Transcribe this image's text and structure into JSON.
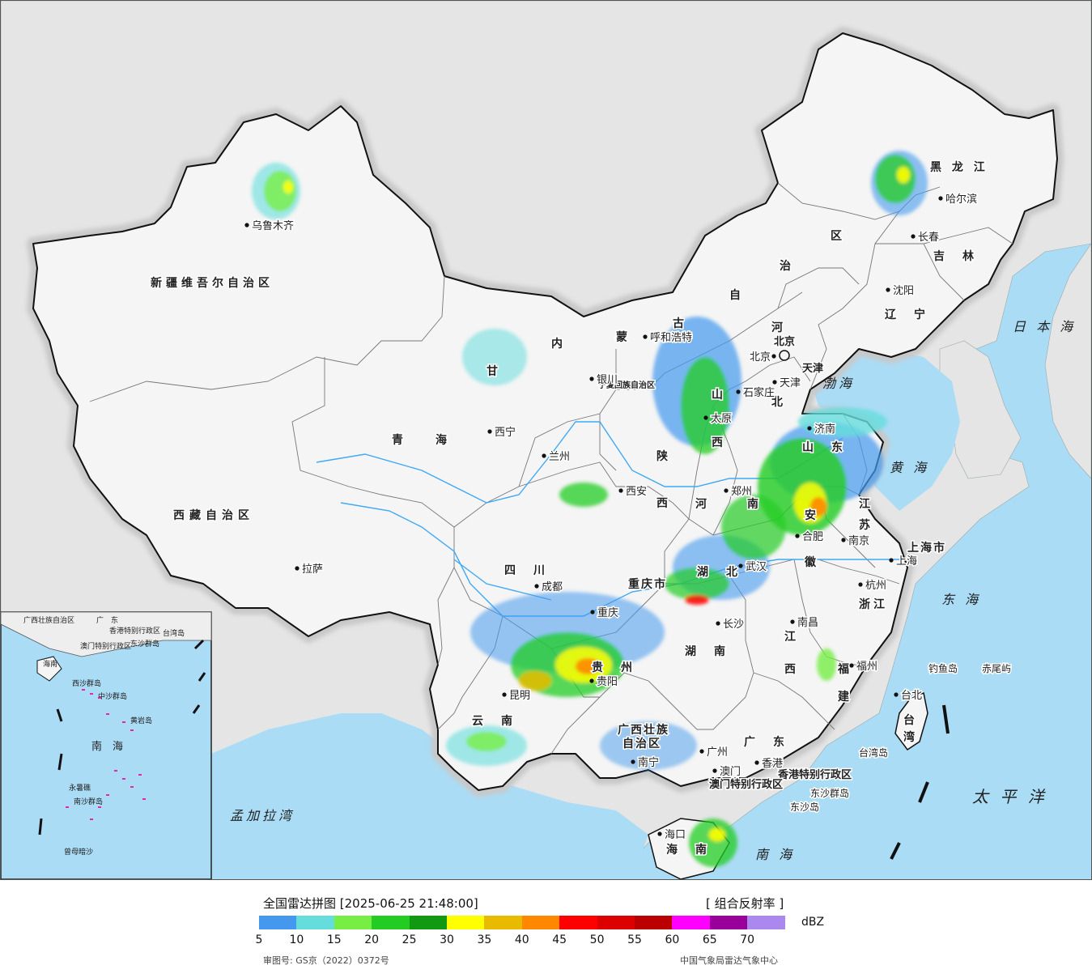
{
  "map": {
    "province_labels": [
      {
        "id": "xinjiang",
        "text": "新疆维吾尔自治区",
        "size": 14,
        "spacing": 5
      },
      {
        "id": "xizang",
        "text": "西藏自治区",
        "size": 14,
        "spacing": 6
      },
      {
        "id": "qinghai",
        "text": "青　　海",
        "size": 14,
        "spacing": 4
      },
      {
        "id": "gansu",
        "text": "甘",
        "size": 14,
        "spacing": 0
      },
      {
        "id": "sichuan",
        "text": "四　川",
        "size": 14,
        "spacing": 4
      },
      {
        "id": "yunnan",
        "text": "云　南",
        "size": 14,
        "spacing": 4
      },
      {
        "id": "guizhou",
        "text": "贵　州",
        "size": 14,
        "spacing": 4
      },
      {
        "id": "chongqing",
        "text": "重庆市",
        "size": 14,
        "spacing": 2
      },
      {
        "id": "shaanxi",
        "text": "陕",
        "size": 14,
        "spacing": 0
      },
      {
        "id": "shaanxi2",
        "text": "西",
        "size": 14,
        "spacing": 0
      },
      {
        "id": "ningxia",
        "text": "宁夏回族自治区",
        "size": 10,
        "spacing": 0
      },
      {
        "id": "neimenggu1",
        "text": "内",
        "size": 14,
        "spacing": 0
      },
      {
        "id": "neimenggu2",
        "text": "蒙",
        "size": 14,
        "spacing": 0
      },
      {
        "id": "neimenggu3",
        "text": "古",
        "size": 14,
        "spacing": 0
      },
      {
        "id": "neimenggu4",
        "text": "自",
        "size": 14,
        "spacing": 0
      },
      {
        "id": "neimenggu5",
        "text": "治",
        "size": 14,
        "spacing": 0
      },
      {
        "id": "neimenggu6",
        "text": "区",
        "size": 14,
        "spacing": 0
      },
      {
        "id": "heilongjiang",
        "text": "黑 龙 江",
        "size": 14,
        "spacing": 4
      },
      {
        "id": "jilin",
        "text": "吉　林",
        "size": 14,
        "spacing": 4
      },
      {
        "id": "liaoning",
        "text": "辽　宁",
        "size": 14,
        "spacing": 4
      },
      {
        "id": "hebei1",
        "text": "河",
        "size": 14,
        "spacing": 0
      },
      {
        "id": "hebei2",
        "text": "北",
        "size": 14,
        "spacing": 0
      },
      {
        "id": "shanxi1",
        "text": "山",
        "size": 14,
        "spacing": 0
      },
      {
        "id": "shanxi2",
        "text": "西",
        "size": 14,
        "spacing": 0
      },
      {
        "id": "shandong",
        "text": "山　东",
        "size": 14,
        "spacing": 4
      },
      {
        "id": "henan1",
        "text": "河",
        "size": 14,
        "spacing": 0
      },
      {
        "id": "henan2",
        "text": "南",
        "size": 14,
        "spacing": 0
      },
      {
        "id": "jiangsu1",
        "text": "江",
        "size": 14,
        "spacing": 0
      },
      {
        "id": "jiangsu2",
        "text": "苏",
        "size": 14,
        "spacing": 0
      },
      {
        "id": "anhui1",
        "text": "安",
        "size": 14,
        "spacing": 0
      },
      {
        "id": "anhui2",
        "text": "徽",
        "size": 14,
        "spacing": 0
      },
      {
        "id": "hubei",
        "text": "湖　北",
        "size": 14,
        "spacing": 4
      },
      {
        "id": "hunan",
        "text": "湖　南",
        "size": 14,
        "spacing": 4
      },
      {
        "id": "jiangxi1",
        "text": "江",
        "size": 14,
        "spacing": 0
      },
      {
        "id": "jiangxi2",
        "text": "西",
        "size": 14,
        "spacing": 0
      },
      {
        "id": "zhejiang",
        "text": "浙江",
        "size": 14,
        "spacing": 4
      },
      {
        "id": "fujian1",
        "text": "福",
        "size": 14,
        "spacing": 0
      },
      {
        "id": "fujian2",
        "text": "建",
        "size": 14,
        "spacing": 0
      },
      {
        "id": "guangxi1",
        "text": "广西壮族",
        "size": 14,
        "spacing": 2
      },
      {
        "id": "guangxi2",
        "text": "自治区",
        "size": 14,
        "spacing": 2
      },
      {
        "id": "guangdong",
        "text": "广　东",
        "size": 14,
        "spacing": 4
      },
      {
        "id": "hainan",
        "text": "海　南",
        "size": 14,
        "spacing": 4
      },
      {
        "id": "shanghai",
        "text": "上海市",
        "size": 14,
        "spacing": 2
      },
      {
        "id": "tianjin",
        "text": "天津",
        "size": 13,
        "spacing": 0
      },
      {
        "id": "beijing",
        "text": "北京",
        "size": 13,
        "spacing": 0
      },
      {
        "id": "taiwan1",
        "text": "台",
        "size": 14,
        "spacing": 0
      },
      {
        "id": "taiwan2",
        "text": "湾",
        "size": 14,
        "spacing": 0
      },
      {
        "id": "hk",
        "text": "香港特别行政区",
        "size": 13,
        "spacing": 0
      },
      {
        "id": "macau",
        "text": "澳门特别行政区",
        "size": 13,
        "spacing": 0
      }
    ],
    "city_labels": [
      {
        "id": "urumqi",
        "text": "乌鲁木齐"
      },
      {
        "id": "lhasa",
        "text": "拉萨"
      },
      {
        "id": "xining",
        "text": "西宁"
      },
      {
        "id": "lanzhou",
        "text": "兰州"
      },
      {
        "id": "yinchuan",
        "text": "银川"
      },
      {
        "id": "hohhot",
        "text": "呼和浩特"
      },
      {
        "id": "chengdu",
        "text": "成都"
      },
      {
        "id": "chongqing_c",
        "text": "重庆"
      },
      {
        "id": "kunming",
        "text": "昆明"
      },
      {
        "id": "guiyang",
        "text": "贵阳"
      },
      {
        "id": "nanning",
        "text": "南宁"
      },
      {
        "id": "xian",
        "text": "西安"
      },
      {
        "id": "taiyuan",
        "text": "太原"
      },
      {
        "id": "shijiazhuang",
        "text": "石家庄"
      },
      {
        "id": "zhengzhou",
        "text": "郑州"
      },
      {
        "id": "jinan",
        "text": "济南"
      },
      {
        "id": "hefei",
        "text": "合肥"
      },
      {
        "id": "nanjing",
        "text": "南京"
      },
      {
        "id": "wuhan",
        "text": "武汉"
      },
      {
        "id": "changsha",
        "text": "长沙"
      },
      {
        "id": "nanchang",
        "text": "南昌"
      },
      {
        "id": "hangzhou",
        "text": "杭州"
      },
      {
        "id": "fuzhou",
        "text": "福州"
      },
      {
        "id": "guangzhou",
        "text": "广州"
      },
      {
        "id": "haikou",
        "text": "海口"
      },
      {
        "id": "shenyang",
        "text": "沈阳"
      },
      {
        "id": "changchun",
        "text": "长春"
      },
      {
        "id": "harbin",
        "text": "哈尔滨"
      },
      {
        "id": "taibei",
        "text": "台北"
      },
      {
        "id": "hongkong_c",
        "text": "香港"
      },
      {
        "id": "macau_c",
        "text": "澳门"
      },
      {
        "id": "shanghai_c",
        "text": "上海"
      },
      {
        "id": "beijing_c",
        "text": "北京"
      },
      {
        "id": "tianjin_c",
        "text": "天津"
      }
    ],
    "sea_labels": [
      {
        "id": "bohai",
        "text": "渤海"
      },
      {
        "id": "huanghai",
        "text": "黄 海"
      },
      {
        "id": "donghai",
        "text": "东 海"
      },
      {
        "id": "nanhai",
        "text": "南 海"
      },
      {
        "id": "taipingyang",
        "text": "太 平 洋"
      },
      {
        "id": "ribenhai",
        "text": "日 本 海"
      },
      {
        "id": "mengjialawan",
        "text": "孟加拉湾"
      }
    ],
    "island_labels": [
      {
        "id": "diaoyudao",
        "text": "钓鱼岛"
      },
      {
        "id": "chiweiyu",
        "text": "赤尾屿"
      },
      {
        "id": "taiwandao",
        "text": "台湾岛"
      },
      {
        "id": "dongsha_qd",
        "text": "东沙群岛"
      },
      {
        "id": "dongshadao",
        "text": "东沙岛"
      }
    ],
    "inset_labels": [
      {
        "id": "in_gx",
        "text": "广西壮族自治区"
      },
      {
        "id": "in_gd",
        "text": "广　东"
      },
      {
        "id": "in_hk",
        "text": "香港特别行政区"
      },
      {
        "id": "in_mo",
        "text": "澳门特别行政区"
      },
      {
        "id": "in_tw",
        "text": "台湾岛"
      },
      {
        "id": "in_ds",
        "text": "东沙群岛"
      },
      {
        "id": "in_hn",
        "text": "海南"
      },
      {
        "id": "in_xs",
        "text": "西沙群岛"
      },
      {
        "id": "in_zs",
        "text": "中沙群岛"
      },
      {
        "id": "in_hy",
        "text": "黄岩岛"
      },
      {
        "id": "in_ns",
        "text": "南沙群岛"
      },
      {
        "id": "in_nanhai",
        "text": "南　海"
      },
      {
        "id": "in_ys",
        "text": "永暑礁"
      },
      {
        "id": "in_zm",
        "text": "曾母暗沙"
      }
    ]
  },
  "legend": {
    "title": "全国雷达拼图 [2025-06-25 21:48:00]",
    "product": "[ 组合反射率 ]",
    "unit": "dBZ",
    "ticks": [
      "5",
      "10",
      "15",
      "20",
      "25",
      "30",
      "35",
      "40",
      "45",
      "50",
      "55",
      "60",
      "65",
      "70"
    ],
    "colors": [
      "#4499ee",
      "#66dddd",
      "#77ee44",
      "#22cc22",
      "#119911",
      "#ffff00",
      "#e8bb00",
      "#ff8800",
      "#ff0000",
      "#dd0000",
      "#bb0000",
      "#ff00ff",
      "#990099",
      "#aa88ee"
    ],
    "approval": "审图号: GS京（2022）0372号",
    "credit": "中国气象局雷达气象中心"
  },
  "colors": {
    "sea": "#aadcf6",
    "land_outside": "#e5e5e5",
    "china_land": "#f5f5f5",
    "border": "#222222",
    "river": "#3fa9f5"
  }
}
